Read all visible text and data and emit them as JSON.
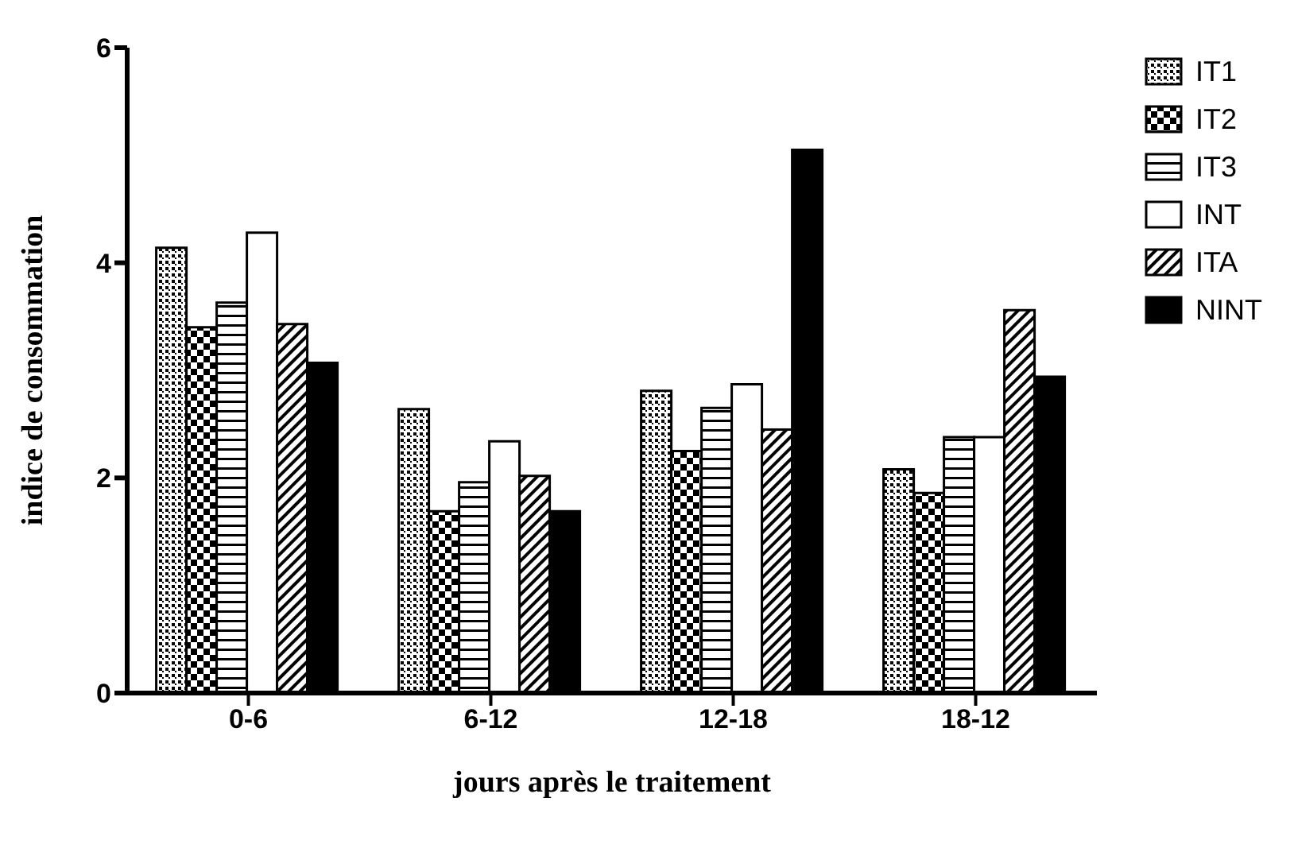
{
  "chart_data": {
    "type": "bar",
    "xlabel": "jours après le traitement",
    "ylabel": "indice de consommation",
    "categories": [
      "0-6",
      "6-12",
      "12-18",
      "18-12"
    ],
    "series": [
      {
        "name": "IT1",
        "color": "#000000",
        "values": [
          4.14,
          2.64,
          2.81,
          2.08
        ]
      },
      {
        "name": "IT2",
        "color": "#000000",
        "values": [
          3.4,
          1.69,
          2.25,
          1.86
        ]
      },
      {
        "name": "IT3",
        "color": "#000000",
        "values": [
          3.63,
          1.96,
          2.65,
          2.38
        ]
      },
      {
        "name": "INT",
        "color": "#ffffff",
        "values": [
          4.28,
          2.34,
          2.87,
          2.38
        ]
      },
      {
        "name": "ITA",
        "color": "#000000",
        "values": [
          3.43,
          2.02,
          2.45,
          3.56
        ]
      },
      {
        "name": "NINT",
        "color": "#000000",
        "values": [
          3.07,
          1.69,
          5.05,
          2.94
        ]
      }
    ],
    "ylim": [
      0,
      6
    ],
    "yticks": [
      0,
      2,
      4,
      6
    ],
    "grid": false,
    "legend": "top right"
  }
}
